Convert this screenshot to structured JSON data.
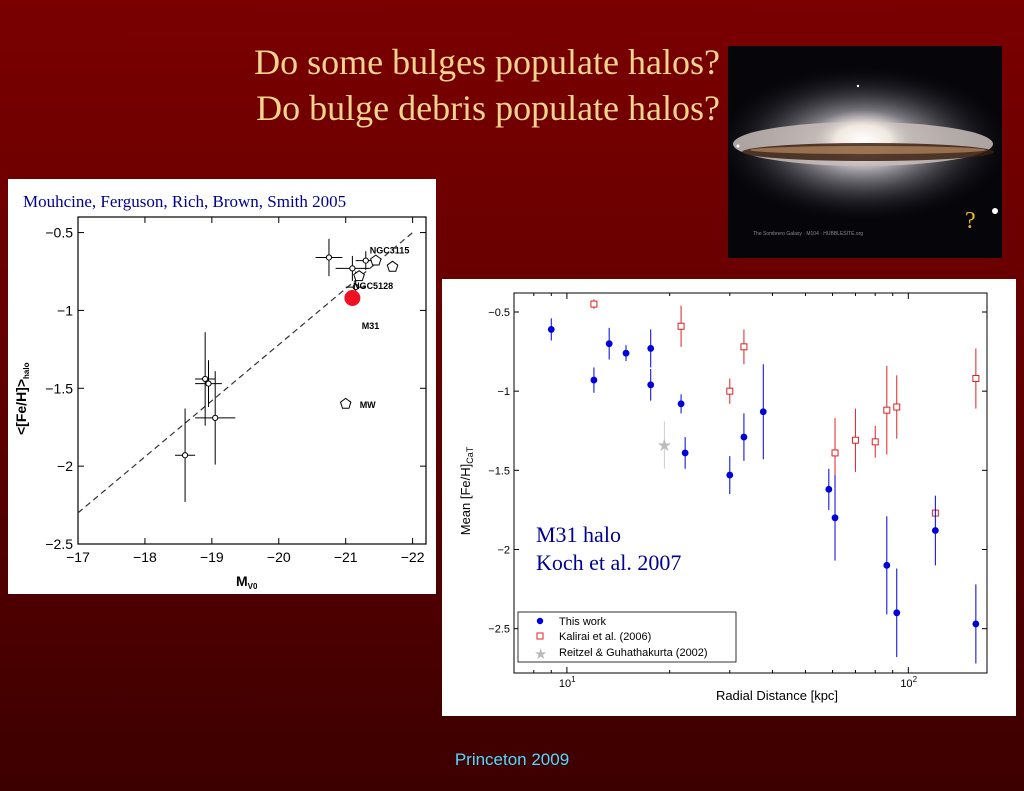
{
  "slide": {
    "title_line1": "Do some bulges populate halos?",
    "title_line2": "Do bulge debris populate halos?",
    "footer": "Princeton 2009",
    "photo_question_mark": "?",
    "photo_caption": "The Sombrero Galaxy · M104 · HUBBLESITE.org",
    "colors": {
      "background": "#6e0000",
      "title": "#f1d48e",
      "footer": "#55d8ff",
      "blue": "#0000dd",
      "red": "#dd2222"
    }
  },
  "chart_data": [
    {
      "type": "scatter",
      "citation": "Mouhcine, Ferguson, Rich, Brown, Smith 2005",
      "xlabel": "M",
      "xlabel_sub": "V0",
      "ylabel": "<[Fe/H]>",
      "ylabel_sub": "halo",
      "xlim": [
        -17,
        -22.2
      ],
      "ylim": [
        -2.5,
        -0.4
      ],
      "xticks": [
        -17,
        -18,
        -19,
        -20,
        -21,
        -22
      ],
      "xtick_labels": [
        "−17",
        "−18",
        "−19",
        "−20",
        "−21",
        "−22"
      ],
      "yticks": [
        -0.5,
        -1,
        -1.5,
        -2,
        -2.5
      ],
      "ytick_labels": [
        "−0.5",
        "−1",
        "−1.5",
        "−2",
        "−2.5"
      ],
      "fit_line": {
        "x": [
          -17,
          -22
        ],
        "y": [
          -2.3,
          -0.5
        ],
        "style": "dashed"
      },
      "points": [
        {
          "x": -18.6,
          "y": -1.93,
          "xerr": 0.15,
          "yerr": 0.3
        },
        {
          "x": -18.9,
          "y": -1.44,
          "xerr": 0.15,
          "yerr": 0.3
        },
        {
          "x": -18.95,
          "y": -1.47,
          "xerr": 0.2,
          "yerr": 0.15
        },
        {
          "x": -19.05,
          "y": -1.69,
          "xerr": 0.3,
          "yerr": 0.3
        },
        {
          "x": -20.75,
          "y": -0.66,
          "xerr": 0.2,
          "yerr": 0.12
        },
        {
          "x": -21.1,
          "y": -0.73,
          "xerr": 0.25,
          "yerr": 0.08
        },
        {
          "x": -21.3,
          "y": -0.68,
          "xerr": 0.15,
          "yerr": 0.06
        },
        {
          "x": -21.15,
          "y": -0.85,
          "xerr": 0.15,
          "yerr": 0.1
        }
      ],
      "pentagons": [
        {
          "x": -21.45,
          "y": -0.68,
          "label": "NGC3115"
        },
        {
          "x": -21.7,
          "y": -0.72,
          "label": ""
        },
        {
          "x": -21.2,
          "y": -0.78,
          "label": "NGC5128"
        },
        {
          "x": -21.0,
          "y": -1.6,
          "label": "MW"
        }
      ],
      "m31_label": "M31",
      "highlight": {
        "x": -21.1,
        "y": -0.92,
        "color": "#ee1122"
      }
    },
    {
      "type": "scatter",
      "xlabel": "Radial Distance [kpc]",
      "ylabel": "Mean [Fe/H]",
      "ylabel_sub": "CaT",
      "xscale": "log",
      "xlim": [
        7,
        170
      ],
      "ylim": [
        -2.78,
        -0.38
      ],
      "xticks": [
        10,
        100
      ],
      "xtick_base": [
        "10",
        "10"
      ],
      "xtick_exp": [
        "1",
        "2"
      ],
      "yticks": [
        -0.5,
        -1,
        -1.5,
        -2,
        -2.5
      ],
      "ytick_labels": [
        "−0.5",
        "−1",
        "−1.5",
        "−2",
        "−2.5"
      ],
      "annotation_line1": "M31 halo",
      "annotation_line2": "Koch et al. 2007",
      "legend": [
        "This work",
        "Kalirai et al. (2006)",
        "Reitzel & Guhathakurta (2002)"
      ],
      "legend_position": "bottom-left",
      "series": [
        {
          "name": "This work",
          "marker": "filled-circle",
          "points": [
            {
              "x": 9,
              "y": -0.61,
              "err": 0.07
            },
            {
              "x": 12,
              "y": -0.93,
              "err": 0.08
            },
            {
              "x": 13.3,
              "y": -0.7,
              "err": 0.1
            },
            {
              "x": 14.9,
              "y": -0.76,
              "err": 0.05
            },
            {
              "x": 17.6,
              "y": -0.73,
              "err": 0.12
            },
            {
              "x": 17.6,
              "y": -0.96,
              "err": 0.1
            },
            {
              "x": 21.6,
              "y": -1.08,
              "err": 0.06
            },
            {
              "x": 22.2,
              "y": -1.39,
              "err": 0.1
            },
            {
              "x": 30,
              "y": -1.53,
              "err": 0.12
            },
            {
              "x": 33,
              "y": -1.29,
              "err": 0.15
            },
            {
              "x": 37.6,
              "y": -1.13,
              "err": 0.3
            },
            {
              "x": 58.5,
              "y": -1.62,
              "err": 0.13
            },
            {
              "x": 61,
              "y": -1.8,
              "err": 0.27
            },
            {
              "x": 86.5,
              "y": -2.1,
              "err": 0.31
            },
            {
              "x": 92.5,
              "y": -2.4,
              "err": 0.28
            },
            {
              "x": 120,
              "y": -1.88,
              "err": 0.22
            },
            {
              "x": 157.7,
              "y": -2.47,
              "err": 0.25
            }
          ]
        },
        {
          "name": "Kalirai et al. (2006)",
          "marker": "open-square",
          "points": [
            {
              "x": 12,
              "y": -0.45,
              "err": 0.03
            },
            {
              "x": 21.6,
              "y": -0.59,
              "err": 0.13
            },
            {
              "x": 30,
              "y": -1.0,
              "err": 0.08
            },
            {
              "x": 33,
              "y": -0.72,
              "err": 0.11
            },
            {
              "x": 61,
              "y": -1.39,
              "err": 0.22
            },
            {
              "x": 70,
              "y": -1.31,
              "err": 0.2
            },
            {
              "x": 80,
              "y": -1.32,
              "err": 0.1
            },
            {
              "x": 86.5,
              "y": -1.12,
              "err": 0.28
            },
            {
              "x": 92.5,
              "y": -1.1,
              "err": 0.2
            },
            {
              "x": 120,
              "y": -1.77,
              "err": 0.01
            },
            {
              "x": 157.7,
              "y": -0.92,
              "err": 0.19
            }
          ]
        },
        {
          "name": "Reitzel & Guhathakurta (2002)",
          "marker": "star",
          "points": [
            {
              "x": 19.3,
              "y": -1.34,
              "err": 0.15
            }
          ]
        }
      ]
    }
  ]
}
